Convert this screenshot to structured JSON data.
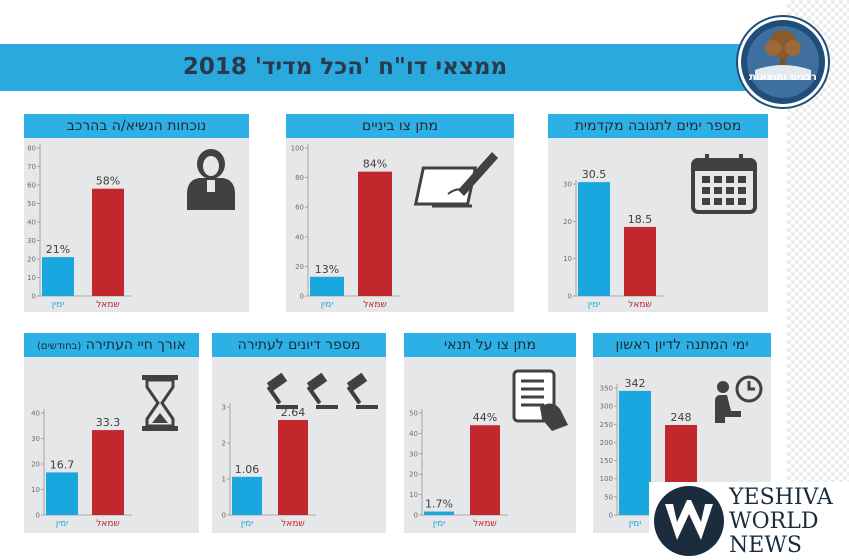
{
  "banner": {
    "title": "ממצאי דו\"ח 'הכל מדיד' 2018"
  },
  "logo": {
    "text": "רבנים ותוצאות"
  },
  "watermark": {
    "line1": "YESHIVA",
    "line2": "WORLD",
    "line3": "NEWS"
  },
  "colors": {
    "right_bar": "#1aa7e0",
    "left_bar": "#c1272d",
    "header": "#2cb0e6",
    "panel": "#e6e7e8",
    "banner": "#29a9de"
  },
  "chart_data": [
    {
      "id": "days_priority",
      "type": "bar",
      "title": "מספר ימים לתגובה מקדמית",
      "icon": "calendar-icon",
      "categories": [
        "ימין",
        "שמאל"
      ],
      "values": [
        30.5,
        18.5
      ],
      "labels": [
        "30.5",
        "18.5"
      ],
      "ylim": [
        0,
        30
      ],
      "yticks": [
        0,
        10,
        20,
        30
      ]
    },
    {
      "id": "interim_order",
      "type": "bar",
      "title": "מתן צו ביניים",
      "icon": "pen-signing-icon",
      "categories": [
        "ימין",
        "שמאל"
      ],
      "values": [
        13,
        84
      ],
      "labels": [
        "13%",
        "84%"
      ],
      "ylim": [
        0,
        100
      ],
      "yticks": [
        0,
        20,
        40,
        60,
        80,
        100
      ]
    },
    {
      "id": "presence",
      "type": "bar",
      "title": "נוכחות הנשיא/ה בהרכב",
      "icon": "judge-icon",
      "categories": [
        "ימין",
        "שמאל"
      ],
      "values": [
        21,
        58
      ],
      "labels": [
        "21%",
        "58%"
      ],
      "ylim": [
        0,
        80
      ],
      "yticks": [
        0,
        10,
        20,
        30,
        40,
        50,
        60,
        70,
        80
      ]
    },
    {
      "id": "first_hearing",
      "type": "bar",
      "title": "ימי המתנה לדיון ראשון",
      "icon": "waiting-clock-icon",
      "categories": [
        "ימין",
        "שמאל"
      ],
      "values": [
        342,
        248
      ],
      "labels": [
        "342",
        "248"
      ],
      "ylim": [
        0,
        350
      ],
      "yticks": [
        0,
        50,
        100,
        150,
        200,
        250,
        300,
        350
      ]
    },
    {
      "id": "conditional_order",
      "type": "bar",
      "title": "מתן צו על תנאי",
      "icon": "document-hand-icon",
      "categories": [
        "ימין",
        "שמאל"
      ],
      "values": [
        1.7,
        44
      ],
      "labels": [
        "1.7%",
        "44%"
      ],
      "ylim": [
        0,
        50
      ],
      "yticks": [
        0,
        10,
        20,
        30,
        40,
        50
      ]
    },
    {
      "id": "hearings_count",
      "type": "bar",
      "title": "מספר דיונים לעתירה",
      "icon": "gavels-icon",
      "categories": [
        "ימין",
        "שמאל"
      ],
      "values": [
        1.06,
        2.64
      ],
      "labels": [
        "1.06",
        "2.64"
      ],
      "ylim": [
        0,
        3
      ],
      "yticks": [
        0,
        1,
        2,
        3
      ]
    },
    {
      "id": "petition_life",
      "type": "bar",
      "title": "אורך חיי העתירה",
      "title_note": "(בחודשים)",
      "icon": "hourglass-icon",
      "categories": [
        "ימין",
        "שמאל"
      ],
      "values": [
        16.7,
        33.3
      ],
      "labels": [
        "16.7",
        "33.3"
      ],
      "ylim": [
        0,
        40
      ],
      "yticks": [
        0,
        10,
        20,
        30,
        40
      ]
    }
  ]
}
